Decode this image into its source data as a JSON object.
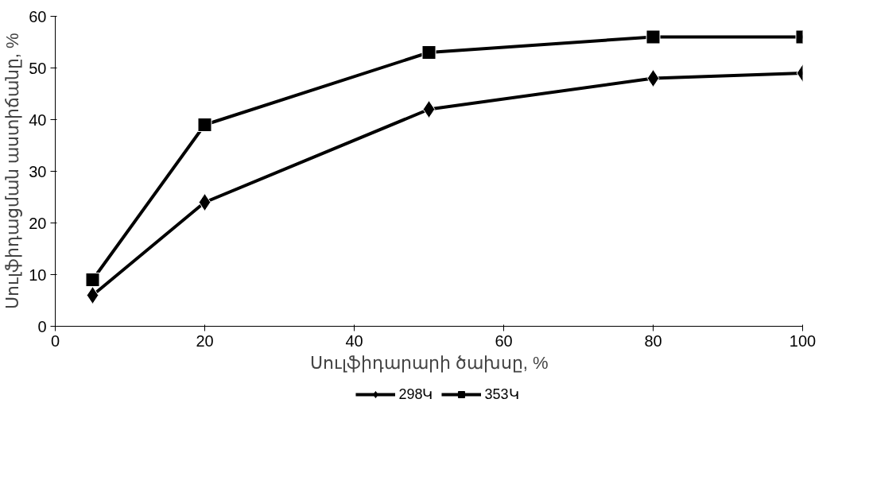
{
  "chart_data": {
    "type": "line",
    "xlabel": "Սուլֆիդարարի ծախսը, %",
    "ylabel": "Սուլֆիդացման աստիճանը, %",
    "x": [
      5,
      20,
      50,
      80,
      100
    ],
    "series": [
      {
        "name": "298Կ",
        "color": "#000000",
        "marker": "diamond",
        "values": [
          6,
          24,
          42,
          48,
          49
        ]
      },
      {
        "name": "353Կ",
        "color": "#000000",
        "marker": "square",
        "values": [
          9,
          39,
          53,
          56,
          56
        ]
      }
    ],
    "xlim": [
      0,
      100
    ],
    "xticks": [
      0,
      20,
      40,
      60,
      80,
      100
    ],
    "ylim": [
      0,
      60
    ],
    "yticks": [
      0,
      10,
      20,
      30,
      40,
      50,
      60
    ],
    "grid": false,
    "legend": "bottom",
    "line_style": "solid"
  }
}
